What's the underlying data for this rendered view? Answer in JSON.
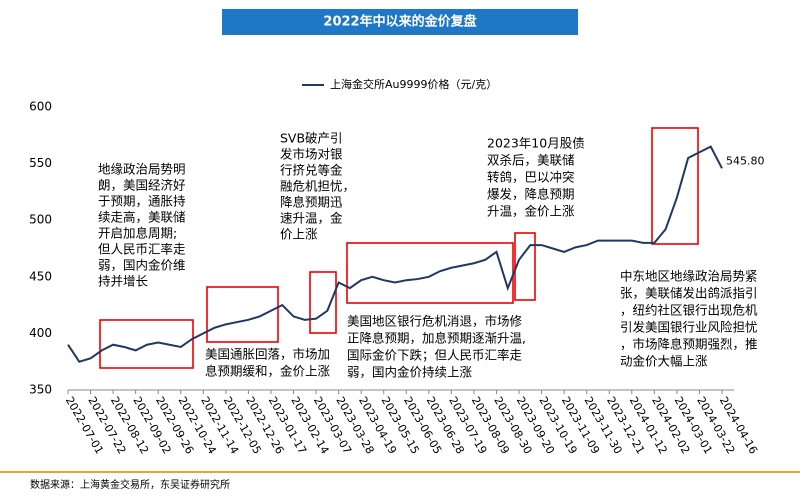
{
  "chart_data": {
    "type": "line",
    "title": "2022年中以来的金价复盘",
    "categories": [
      "2022-07-01",
      null,
      "2022-07-22",
      null,
      "2022-08-12",
      null,
      "2022-09-02",
      null,
      "2022-09-26",
      null,
      "2022-10-24",
      null,
      "2022-11-14",
      null,
      "2022-12-05",
      null,
      "2022-12-26",
      null,
      "2023-01-17",
      null,
      "2023-02-14",
      null,
      "2023-03-07",
      null,
      "2023-03-28",
      null,
      "2023-04-19",
      null,
      "2023-05-15",
      null,
      "2023-06-05",
      null,
      "2023-06-28",
      null,
      "2023-07-19",
      null,
      "2023-08-09",
      null,
      "2023-08-30",
      null,
      "2023-09-20",
      null,
      "2023-10-19",
      null,
      "2023-11-09",
      null,
      "2023-11-30",
      null,
      "2023-12-21",
      null,
      "2024-01-12",
      null,
      "2024-02-02",
      null,
      "2024-03-01",
      null,
      "2024-03-22",
      null,
      "2024-04-16"
    ],
    "series": [
      {
        "name": "上海金交所Au9999价格（元/克）",
        "color": "#203864",
        "values": [
          390,
          375,
          378,
          385,
          390,
          388,
          385,
          390,
          392,
          390,
          388,
          395,
          400,
          405,
          408,
          410,
          412,
          415,
          420,
          425,
          415,
          412,
          413,
          420,
          445,
          440,
          447,
          450,
          447,
          445,
          447,
          448,
          450,
          455,
          458,
          460,
          462,
          465,
          472,
          440,
          465,
          478,
          478,
          475,
          472,
          476,
          478,
          482,
          482,
          482,
          482,
          480,
          480,
          492,
          520,
          555,
          560,
          565,
          545.8
        ],
        "value_labels": [
          null,
          null,
          null,
          null,
          null,
          null,
          null,
          null,
          null,
          null,
          null,
          null,
          null,
          null,
          null,
          null,
          null,
          null,
          null,
          null,
          null,
          null,
          null,
          null,
          null,
          null,
          null,
          null,
          null,
          null,
          null,
          null,
          null,
          null,
          null,
          null,
          null,
          null,
          null,
          null,
          null,
          null,
          null,
          null,
          null,
          null,
          null,
          null,
          null,
          null,
          null,
          null,
          null,
          null,
          null,
          null,
          null,
          null,
          "545.80"
        ]
      }
    ],
    "ylim": [
      350,
      600
    ],
    "yticks": [
      350,
      400,
      450,
      500,
      550,
      600
    ],
    "grid": false,
    "legend": "top",
    "annotations": [
      {
        "lines": [
          "地缘政治局势明",
          "朗，美国经济好",
          "于预期，通胀持",
          "续走高，美联储",
          "开启加息周期;",
          "但人民币汇率走",
          "弱，国内金价维",
          "持并增长"
        ]
      },
      {
        "lines": [
          "SVB破产引",
          "发市场对银",
          "行挤兑等金",
          "融危机担忧，",
          "降息预期迅",
          "速升温，金",
          "价上涨"
        ]
      },
      {
        "lines": [
          "2023年10月股债",
          "双杀后，美联储",
          "转鸽，巴以冲突",
          "爆发，降息预期",
          "升温，金价上涨"
        ]
      },
      {
        "lines": [
          "中东地区地缘政治局势紧",
          "张，美联储发出鸽派指引",
          "，纽约社区银行出现危机",
          "引发美国银行业风险担忧",
          "，市场降息预期强烈，推",
          "动金价大幅上涨"
        ]
      },
      {
        "lines": [
          "美国通胀回落，市场加",
          "息预期缓和，金价上涨"
        ]
      },
      {
        "lines": [
          "美国地区银行危机消退，市场修",
          "正降息预期，加息预期逐渐升温,",
          "国际金价下跌；但人民币汇率走",
          "弱，国内金价持续上涨"
        ]
      }
    ],
    "source": "数据来源：上海黄金交易所，东吴证券研究所"
  }
}
